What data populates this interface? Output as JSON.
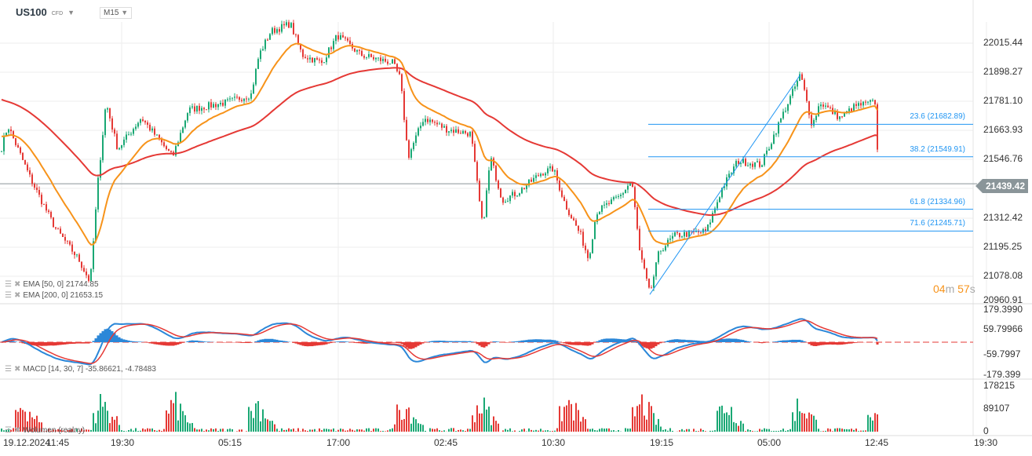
{
  "header": {
    "symbol": "US100",
    "type": "CFD",
    "timeframe": "M15"
  },
  "legend": {
    "ema50": "EMA [50, 0] 21744.85",
    "ema200": "EMA [200, 0] 21653.15",
    "macd": "MACD [14, 30, 7] -35.86621, -4.78483",
    "volume": "Wolumen (realny)"
  },
  "price_axis": [
    "22015.44",
    "21898.27",
    "21781.10",
    "21663.93",
    "21546.76",
    "21439.42",
    "21312.42",
    "21195.25",
    "21078.08",
    "20960.91"
  ],
  "current_price": "21439.42",
  "macd_axis": [
    "179.3990",
    "59.79966",
    "-59.7997",
    "-179.399"
  ],
  "volume_axis": [
    "178215",
    "89107",
    "0"
  ],
  "time_axis": [
    "19.12.2024",
    "11:45",
    "19:30",
    "05:15",
    "17:00",
    "02:45",
    "10:30",
    "19:15",
    "05:00",
    "12:45",
    "19:30"
  ],
  "fib_levels": [
    {
      "label": "23.6 (21682.89)",
      "price": 21682.89
    },
    {
      "label": "38.2 (21549.91)",
      "price": 21549.91
    },
    {
      "label": "61.8 (21334.96)",
      "price": 21334.96
    },
    {
      "label": "71.6 (21245.71)",
      "price": 21245.71
    }
  ],
  "timer": {
    "min": "04",
    "min_unit": "m",
    "sec": "57",
    "sec_unit": "s"
  },
  "colors": {
    "up": "#1aa874",
    "down": "#e53935",
    "ema50": "#f7931a",
    "ema200": "#e53935",
    "fib": "#2196f3",
    "macd": "#2b87d8",
    "signal": "#e53935"
  },
  "chart_data": {
    "type": "candlestick",
    "ylim": [
      20960.91,
      22015.44
    ],
    "price_path": [
      [
        0,
        21565
      ],
      [
        10,
        21678
      ],
      [
        40,
        21453
      ],
      [
        70,
        21260
      ],
      [
        100,
        21131
      ],
      [
        115,
        21035
      ],
      [
        125,
        21453
      ],
      [
        135,
        21774
      ],
      [
        150,
        21581
      ],
      [
        180,
        21710
      ],
      [
        220,
        21549
      ],
      [
        240,
        21742
      ],
      [
        290,
        21774
      ],
      [
        320,
        21806
      ],
      [
        330,
        21967
      ],
      [
        345,
        22063
      ],
      [
        370,
        22095
      ],
      [
        385,
        21967
      ],
      [
        410,
        21935
      ],
      [
        430,
        22047
      ],
      [
        460,
        21967
      ],
      [
        500,
        21935
      ],
      [
        510,
        21871
      ],
      [
        520,
        21549
      ],
      [
        540,
        21710
      ],
      [
        570,
        21662
      ],
      [
        600,
        21645
      ],
      [
        615,
        21260
      ],
      [
        625,
        21549
      ],
      [
        640,
        21372
      ],
      [
        660,
        21404
      ],
      [
        690,
        21485
      ],
      [
        705,
        21501
      ],
      [
        720,
        21356
      ],
      [
        740,
        21228
      ],
      [
        750,
        21131
      ],
      [
        760,
        21324
      ],
      [
        790,
        21388
      ],
      [
        805,
        21453
      ],
      [
        815,
        21163
      ],
      [
        828,
        20986
      ],
      [
        840,
        21163
      ],
      [
        860,
        21228
      ],
      [
        900,
        21244
      ],
      [
        920,
        21420
      ],
      [
        940,
        21533
      ],
      [
        970,
        21517
      ],
      [
        1000,
        21742
      ],
      [
        1020,
        21887
      ],
      [
        1035,
        21678
      ],
      [
        1045,
        21774
      ],
      [
        1070,
        21710
      ],
      [
        1090,
        21758
      ],
      [
        1115,
        21774
      ],
      [
        1120,
        21439
      ]
    ],
    "ema_init": {
      "ema50": 21640,
      "ema200": 21790
    },
    "macd_params": [
      14,
      30,
      7
    ],
    "volume_spikes": [
      30,
      130,
      222,
      328,
      515,
      612,
      725,
      818,
      925,
      1020,
      1118
    ]
  }
}
